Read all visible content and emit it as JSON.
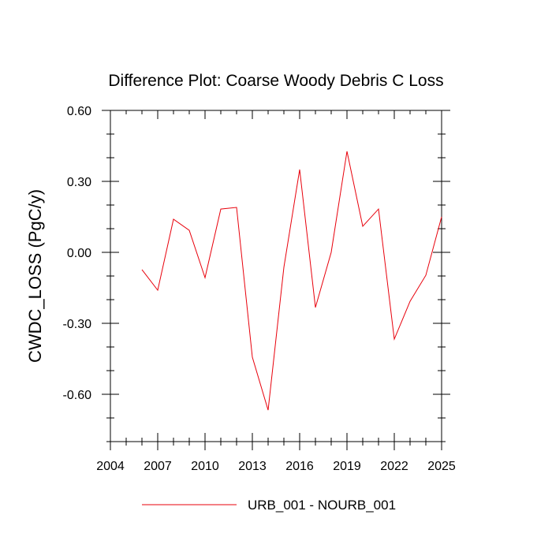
{
  "chart_data": {
    "type": "line",
    "title": "Difference Plot: Coarse Woody Debris C Loss",
    "xlabel": "",
    "ylabel": "CWDC_LOSS  (PgC/y)",
    "xlim": [
      2004,
      2025
    ],
    "ylim": [
      -0.8,
      0.6
    ],
    "xticks": [
      2004,
      2007,
      2010,
      2013,
      2016,
      2019,
      2022,
      2025
    ],
    "xtick_labels": [
      "2004",
      "2007",
      "2010",
      "2013",
      "2016",
      "2019",
      "2022",
      "2025"
    ],
    "yticks": [
      0.6,
      0.3,
      0.0,
      -0.3,
      -0.6
    ],
    "ytick_labels": [
      "0.60",
      "0.30",
      "0.00",
      "-0.30",
      "-0.60"
    ],
    "grid": false,
    "legend_position": "bottom",
    "series": [
      {
        "name": "URB_001 - NOURB_001",
        "color": "#e8000b",
        "x": [
          2006,
          2007,
          2008,
          2009,
          2010,
          2011,
          2012,
          2013,
          2014,
          2015,
          2016,
          2017,
          2018,
          2019,
          2020,
          2021,
          2022,
          2023,
          2024,
          2025
        ],
        "y": [
          -0.073,
          -0.16,
          0.14,
          0.093,
          -0.107,
          0.183,
          0.19,
          -0.443,
          -0.667,
          -0.063,
          0.35,
          -0.233,
          0.0,
          0.427,
          0.11,
          0.183,
          -0.367,
          -0.207,
          -0.097,
          0.15
        ]
      }
    ]
  }
}
